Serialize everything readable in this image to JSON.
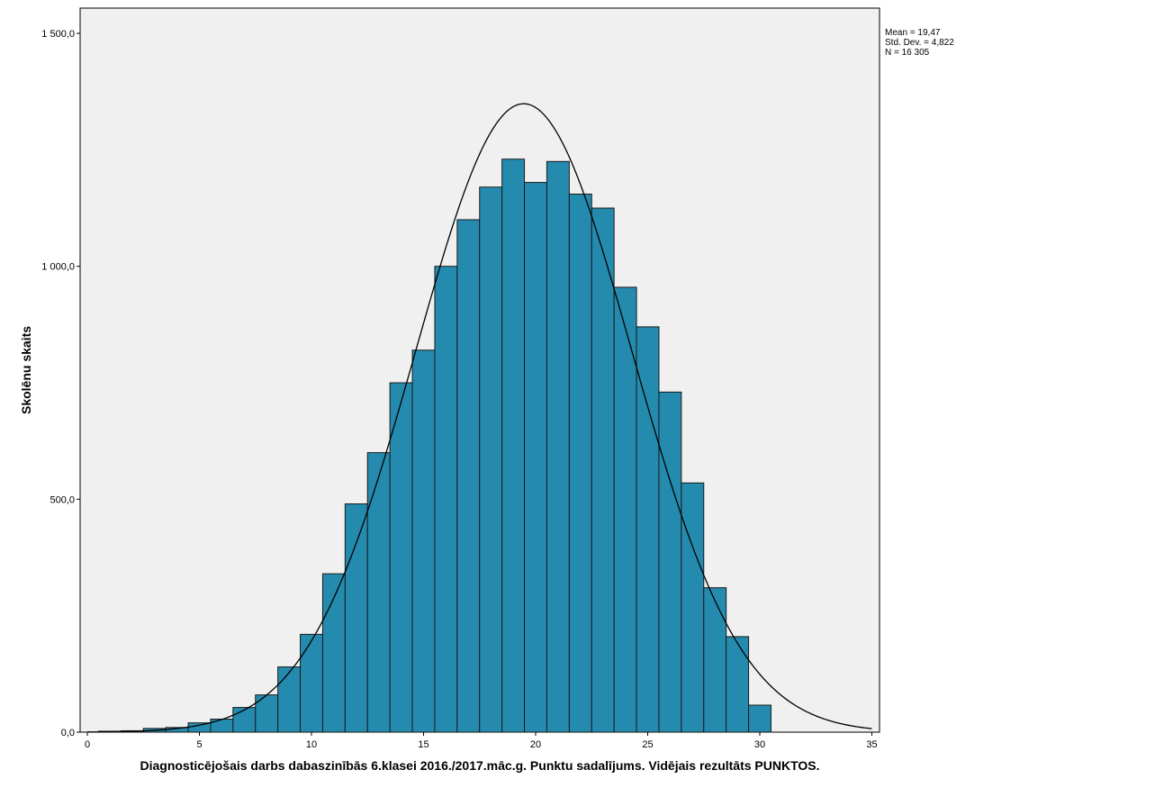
{
  "chart_data": {
    "type": "bar",
    "subtype": "histogram_with_normal_curve",
    "title": "",
    "xlabel": "Diagnosticējošais darbs dabaszinībās 6.klasei 2016./2017.māc.g. Punktu sadalījums. Vidējais rezultāts PUNKTOS.",
    "ylabel": "Skolēnu skaits",
    "xlim": [
      0,
      35
    ],
    "ylim": [
      0,
      1500
    ],
    "x_ticks": [
      0,
      5,
      10,
      15,
      20,
      25,
      30,
      35
    ],
    "x_tick_labels": [
      "0",
      "5",
      "10",
      "15",
      "20",
      "25",
      "30",
      "35"
    ],
    "y_ticks": [
      0,
      500,
      1000,
      1500
    ],
    "y_tick_labels": [
      "0,0",
      "500,0",
      "1 000,0",
      "1 500,0"
    ],
    "bin_width": 1,
    "bin_centers": [
      1,
      2,
      3,
      4,
      5,
      6,
      7,
      8,
      9,
      10,
      11,
      12,
      13,
      14,
      15,
      16,
      17,
      18,
      19,
      20,
      21,
      22,
      23,
      24,
      25,
      26,
      27,
      28,
      29,
      30
    ],
    "values": [
      2,
      3,
      8,
      10,
      20,
      28,
      53,
      80,
      140,
      210,
      340,
      490,
      600,
      750,
      820,
      1000,
      1100,
      1170,
      1230,
      1180,
      1225,
      1155,
      1125,
      955,
      870,
      730,
      535,
      310,
      205,
      58
    ],
    "normal_curve": {
      "mean": 19.47,
      "std_dev": 4.822,
      "n": 16305
    },
    "stats_box": [
      "Mean = 19,47",
      "Std. Dev. = 4,822",
      "N = 16 305"
    ],
    "colors": {
      "bar_fill": "#248bae",
      "bar_stroke": "#1a1a1a",
      "plot_bg": "#f0f0f0",
      "curve": "#000000"
    },
    "grid": false,
    "legend": "top-right"
  }
}
